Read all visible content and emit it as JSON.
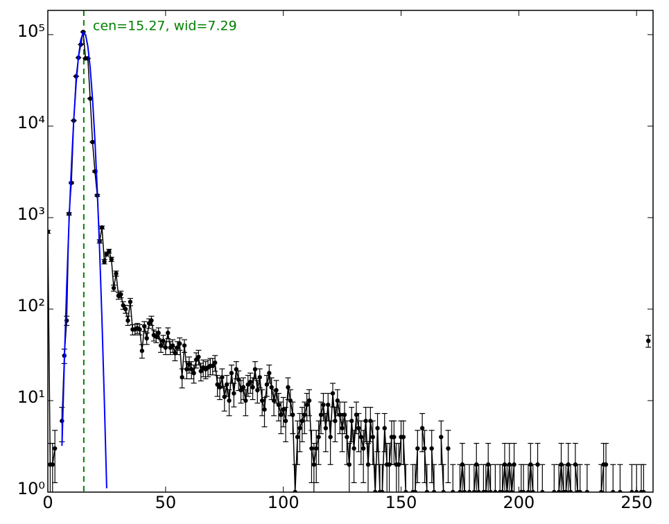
{
  "chart_data": {
    "type": "errorbar",
    "log_y": true,
    "error_bars": "poisson",
    "annotation": "cen=15.27, wid=7.29",
    "annotation_color": "#008000",
    "marker_line": {
      "x": 15.27,
      "color": "#008000"
    },
    "xlim": [
      0,
      257
    ],
    "xticks": [
      0,
      50,
      100,
      150,
      200,
      250
    ],
    "ylim": [
      1,
      184000
    ],
    "yticks": [
      {
        "value": 1,
        "label": "10⁰"
      },
      {
        "value": 10,
        "label": "10¹"
      },
      {
        "value": 100,
        "label": "10²"
      },
      {
        "value": 1000,
        "label": "10³"
      },
      {
        "value": 10000,
        "label": "10⁴"
      },
      {
        "value": 100000,
        "label": "10⁵"
      }
    ],
    "series": [
      {
        "kind": "points",
        "color": "#000000",
        "x": [
          0,
          1,
          2,
          3,
          4,
          5,
          6,
          7,
          8,
          9,
          10,
          11,
          12,
          13,
          14,
          15,
          16,
          17,
          18,
          19,
          20,
          21,
          22,
          23,
          24,
          25,
          26,
          27,
          28,
          29,
          30,
          31,
          32,
          33,
          34,
          35,
          36,
          37,
          38,
          39,
          40,
          41,
          42,
          43,
          44,
          45,
          46,
          47,
          48,
          49,
          50,
          51,
          52,
          53,
          54,
          55,
          56,
          57,
          58,
          59,
          60,
          61,
          62,
          63,
          64,
          65,
          66,
          67,
          68,
          69,
          70,
          71,
          72,
          73,
          74,
          75,
          76,
          77,
          78,
          79,
          80,
          81,
          82,
          83,
          84,
          85,
          86,
          87,
          88,
          89,
          90,
          91,
          92,
          93,
          94,
          95,
          96,
          97,
          98,
          99,
          100,
          101,
          102,
          103,
          104,
          105,
          106,
          107,
          108,
          109,
          110,
          111,
          112,
          113,
          114,
          115,
          116,
          117,
          118,
          119,
          120,
          121,
          122,
          123,
          124,
          125,
          126,
          127,
          128,
          129,
          130,
          131,
          132,
          133,
          134,
          135,
          136,
          137,
          138,
          139,
          140,
          141,
          142,
          143,
          144,
          145,
          146,
          147,
          148,
          149,
          150,
          151,
          152,
          153,
          154,
          155,
          156,
          157,
          158,
          159,
          160,
          161,
          162,
          163,
          164,
          165,
          166,
          167,
          168,
          169,
          170,
          171,
          172,
          173,
          174,
          175,
          176,
          177,
          178,
          179,
          180,
          181,
          182,
          183,
          184,
          185,
          186,
          187,
          188,
          189,
          190,
          191,
          192,
          193,
          194,
          195,
          196,
          197,
          198,
          199,
          200,
          201,
          202,
          203,
          204,
          205,
          206,
          207,
          208,
          209,
          210,
          211,
          212,
          213,
          214,
          215,
          216,
          217,
          218,
          219,
          220,
          221,
          222,
          223,
          224,
          225,
          226,
          227,
          228,
          229,
          230,
          231,
          232,
          233,
          234,
          235,
          236,
          237,
          238,
          239,
          240,
          241,
          242,
          243,
          244,
          245,
          246,
          247,
          248,
          249,
          250,
          251,
          252,
          253,
          254,
          255
        ],
        "values": [
          700,
          2,
          2,
          3,
          null,
          null,
          6,
          31,
          75,
          1100,
          2400,
          11500,
          35000,
          56000,
          78000,
          107000,
          55000,
          55000,
          20000,
          6700,
          3200,
          1750,
          550,
          780,
          330,
          400,
          430,
          350,
          170,
          245,
          140,
          145,
          110,
          100,
          75,
          120,
          60,
          60,
          62,
          60,
          35,
          65,
          48,
          70,
          75,
          52,
          50,
          55,
          40,
          45,
          38,
          55,
          38,
          40,
          33,
          38,
          42,
          18,
          40,
          22,
          25,
          22,
          20,
          28,
          30,
          21,
          23,
          22,
          23,
          24,
          24,
          26,
          15,
          14,
          18,
          11,
          15,
          10,
          20,
          12,
          22,
          17,
          13,
          14,
          10,
          15,
          16,
          14,
          22,
          13,
          18,
          10,
          8,
          15,
          20,
          14,
          10,
          13,
          9,
          7,
          8,
          6,
          14,
          10,
          7,
          1,
          4,
          5,
          6,
          7,
          9,
          10,
          3,
          2,
          3,
          4,
          7,
          9,
          5,
          9,
          4,
          12,
          6,
          10,
          7,
          5,
          7,
          4,
          2,
          6,
          3,
          7,
          5,
          4,
          3,
          6,
          2,
          6,
          4,
          1,
          5,
          1,
          1,
          5,
          2,
          2,
          4,
          4,
          2,
          2,
          4,
          4,
          1,
          null,
          null,
          1,
          1,
          3,
          null,
          5,
          3,
          1,
          null,
          3,
          1,
          null,
          null,
          4,
          1,
          null,
          3,
          null,
          1,
          null,
          null,
          1,
          2,
          1,
          null,
          1,
          null,
          1,
          2,
          1,
          null,
          1,
          1,
          2,
          1,
          null,
          1,
          null,
          1,
          1,
          2,
          1,
          2,
          1,
          2,
          null,
          null,
          1,
          1,
          null,
          1,
          2,
          1,
          null,
          2,
          null,
          1,
          null,
          null,
          null,
          null,
          1,
          null,
          1,
          2,
          1,
          1,
          2,
          1,
          null,
          2,
          1,
          1,
          null,
          null,
          1,
          null,
          null,
          null,
          null,
          null,
          1,
          2,
          2,
          null,
          null,
          1,
          null,
          null,
          1,
          null,
          null,
          null,
          null,
          1,
          null,
          1,
          null,
          1,
          1,
          null,
          45
        ]
      },
      {
        "kind": "line",
        "color": "#0000ff",
        "x": [
          6,
          7,
          8,
          9,
          10,
          11,
          12,
          13,
          14,
          15,
          16,
          17,
          18,
          19,
          20,
          21,
          22,
          23,
          24,
          25
        ],
        "values": [
          3.2,
          26.5,
          174,
          910,
          3600,
          11800,
          29200,
          57300,
          88000,
          106000,
          100000,
          74400,
          43300,
          19800,
          7040,
          2000,
          438,
          76,
          10,
          1.1
        ]
      }
    ]
  }
}
